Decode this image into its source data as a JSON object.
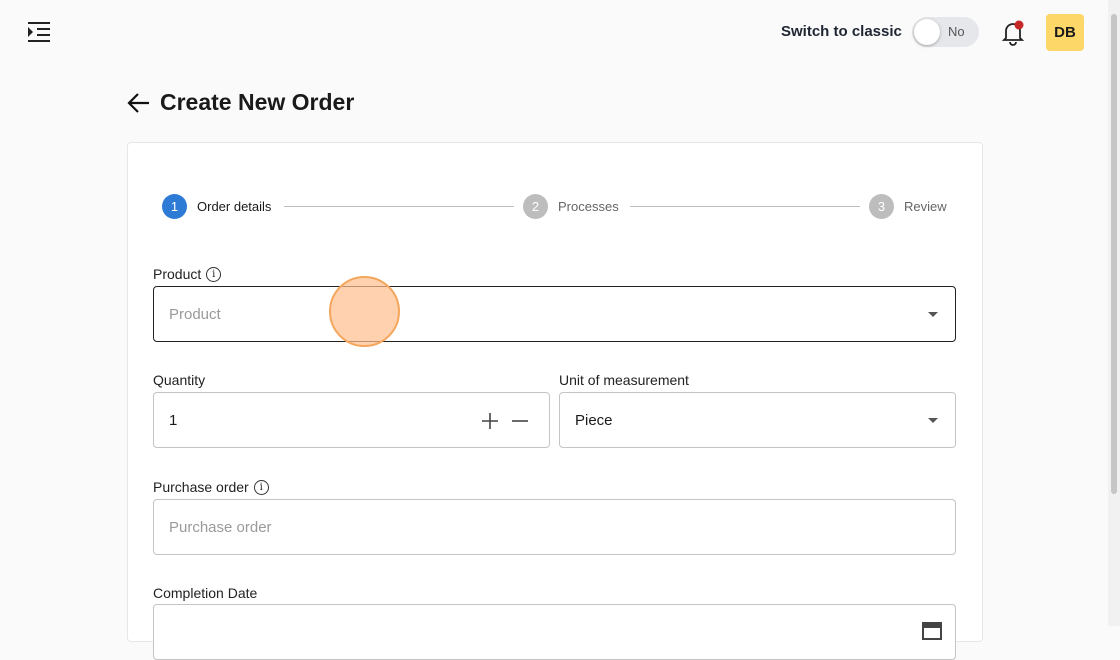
{
  "header": {
    "menu_icon": "menu-indent-icon",
    "switch_label": "Switch to classic",
    "toggle_value": "No",
    "toggle_on": false,
    "bell_icon": "bell-icon",
    "notification_dot_color": "#c62828",
    "avatar_initials": "DB",
    "avatar_color": "#fdd868"
  },
  "page": {
    "title": "Create New Order",
    "back_icon": "arrow-left-icon"
  },
  "steps": [
    {
      "num": "1",
      "label": "Order details",
      "active": true
    },
    {
      "num": "2",
      "label": "Processes",
      "active": false
    },
    {
      "num": "3",
      "label": "Review",
      "active": false
    }
  ],
  "form": {
    "product": {
      "label": "Product",
      "placeholder": "Product"
    },
    "quantity": {
      "label": "Quantity",
      "value": "1"
    },
    "unit": {
      "label": "Unit of measurement",
      "value": "Piece"
    },
    "purchase_order": {
      "label": "Purchase order",
      "placeholder": "Purchase order"
    },
    "completion_date": {
      "label": "Completion Date"
    }
  },
  "colors": {
    "accent": "#2e7bd6"
  }
}
